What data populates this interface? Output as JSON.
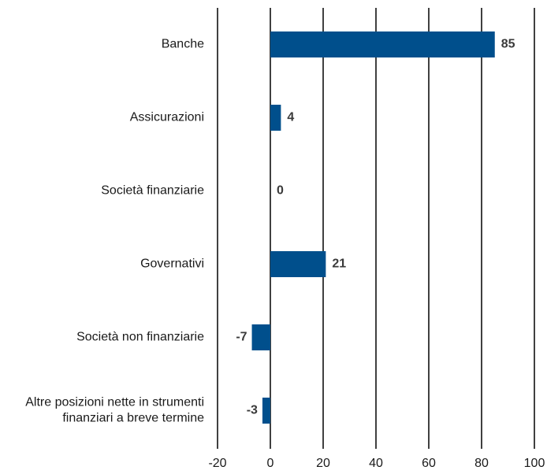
{
  "chart_data": {
    "type": "bar",
    "orientation": "horizontal",
    "title": "",
    "xlabel": "",
    "ylabel": "",
    "categories": [
      [
        "Banche"
      ],
      [
        "Assicurazioni"
      ],
      [
        "Società finanziarie"
      ],
      [
        "Governativi"
      ],
      [
        "Società non finanziarie"
      ],
      [
        "Altre posizioni nette in strumenti",
        "finanziari a breve termine"
      ]
    ],
    "values": [
      85,
      4,
      0,
      21,
      -7,
      -3
    ],
    "value_labels": [
      "85",
      "4",
      "0",
      "21",
      "-7",
      "-3"
    ],
    "xlim": [
      -20,
      100
    ],
    "xticks": [
      -20,
      0,
      20,
      40,
      60,
      80,
      100
    ],
    "xtick_labels": [
      "-20",
      "0",
      "20",
      "40",
      "60",
      "80",
      "100"
    ],
    "grid": "vertical",
    "legend": "none",
    "colors": {
      "bar": "#004f8c",
      "grid": "#000000"
    }
  }
}
